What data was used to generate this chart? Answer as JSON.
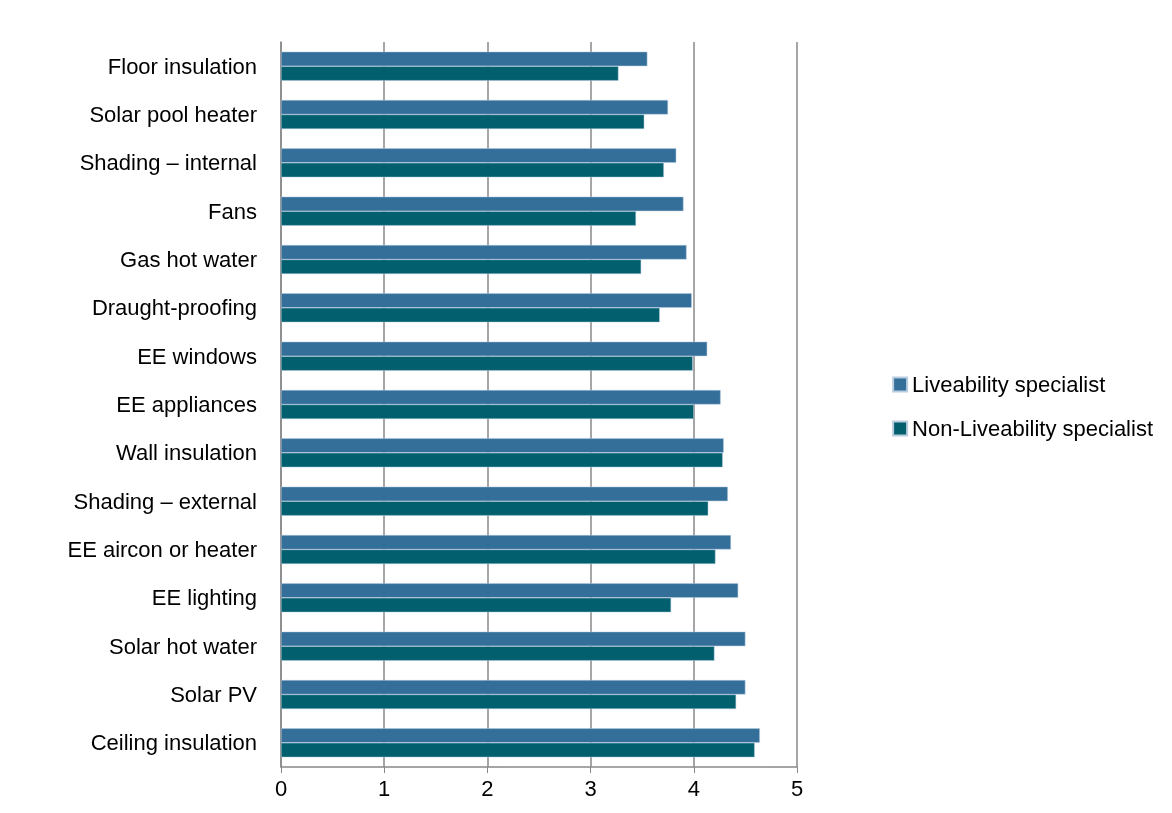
{
  "chart_data": {
    "type": "bar",
    "orientation": "horizontal",
    "categories": [
      "Floor insulation",
      "Solar pool heater",
      "Shading – internal",
      "Fans",
      "Gas hot water",
      "Draught-proofing",
      "EE windows",
      "EE appliances",
      "Wall insulation",
      "Shading – external",
      "EE aircon or heater",
      "EE lighting",
      "Solar hot water",
      "Solar PV",
      "Ceiling insulation"
    ],
    "series": [
      {
        "name": "Liveability specialist",
        "color": "#346f9a",
        "values": [
          3.55,
          3.75,
          3.83,
          3.9,
          3.93,
          3.98,
          4.13,
          4.26,
          4.29,
          4.33,
          4.36,
          4.43,
          4.5,
          4.5,
          4.64
        ]
      },
      {
        "name": "Non-Liveability specialist",
        "color": "#015f6e",
        "values": [
          3.27,
          3.52,
          3.71,
          3.44,
          3.49,
          3.67,
          3.99,
          4.0,
          4.28,
          4.14,
          4.21,
          3.78,
          4.2,
          4.41,
          4.59
        ]
      }
    ],
    "xlim": [
      0,
      5
    ],
    "xticks": [
      0,
      1,
      2,
      3,
      4,
      5
    ],
    "grid": "x",
    "legend": "right"
  }
}
